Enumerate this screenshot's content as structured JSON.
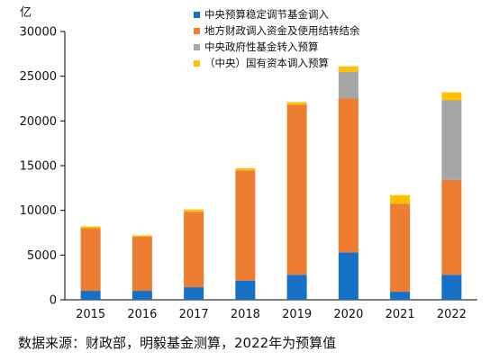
{
  "chart_data": {
    "type": "bar",
    "stacked": true,
    "y_unit": "亿",
    "ylim": [
      0,
      30000
    ],
    "yticks": [
      0,
      5000,
      10000,
      15000,
      20000,
      25000,
      30000
    ],
    "grid": false,
    "legend_position": "top-right",
    "categories": [
      "2015",
      "2016",
      "2017",
      "2018",
      "2019",
      "2020",
      "2021",
      "2022"
    ],
    "series": [
      {
        "name": "中央预算稳定调节基金调入",
        "color": "#1670C6",
        "values": [
          1000,
          1000,
          1400,
          2150,
          2800,
          5300,
          900,
          2800
        ]
      },
      {
        "name": "地方财政调入资金及使用结转结余",
        "color": "#ED7D31",
        "values": [
          7000,
          6050,
          8450,
          12300,
          19000,
          17200,
          9850,
          10600
        ]
      },
      {
        "name": "中央政府性基金转入预算",
        "color": "#A6A6A6",
        "values": [
          0,
          0,
          0,
          0,
          0,
          3000,
          0,
          8900
        ]
      },
      {
        "name": "（中央）国有资本调入预算",
        "color": "#FFC000",
        "values": [
          200,
          150,
          250,
          250,
          300,
          600,
          950,
          900
        ]
      }
    ]
  },
  "source_note": "数据来源：财政部，明毅基金测算，2022年为预算值"
}
